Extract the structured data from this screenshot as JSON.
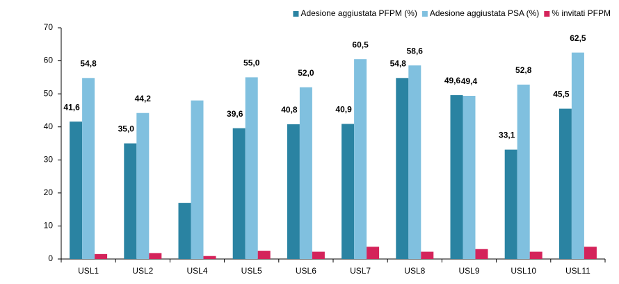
{
  "chart_data": {
    "type": "bar",
    "categories": [
      "USL1",
      "USL2",
      "USL4",
      "USL5",
      "USL6",
      "USL7",
      "USL8",
      "USL9",
      "USL10",
      "USL11"
    ],
    "series": [
      {
        "name": "Adesione aggiustata PFPM (%)",
        "color": "#2a83a2",
        "values": [
          41.6,
          35.0,
          17,
          39.6,
          40.8,
          40.9,
          54.8,
          49.6,
          33.1,
          45.5
        ],
        "value_labels": [
          "41,6",
          "35,0",
          null,
          "39,6",
          "40,8",
          "40,9",
          "54,8",
          "49,6",
          "33,1",
          "45,5"
        ]
      },
      {
        "name": "Adesione aggiustata PSA (%)",
        "color": "#80c0df",
        "values": [
          54.8,
          44.2,
          48,
          55.0,
          52.0,
          60.5,
          58.6,
          49.4,
          52.8,
          62.5
        ],
        "value_labels": [
          "54,8",
          "44,2",
          null,
          "55,0",
          "52,0",
          "60,5",
          "58,6",
          "49,4",
          "52,8",
          "62,5"
        ]
      },
      {
        "name": "% invitati PFPM",
        "color": "#d4235a",
        "values": [
          1.5,
          1.8,
          0.9,
          2.5,
          2.2,
          3.7,
          2.2,
          3.0,
          2.2,
          3.7
        ]
      }
    ],
    "ylim": [
      0,
      70
    ],
    "yticks": [
      0,
      10,
      20,
      30,
      40,
      50,
      60,
      70
    ],
    "grid": false,
    "legend": "top-right"
  }
}
